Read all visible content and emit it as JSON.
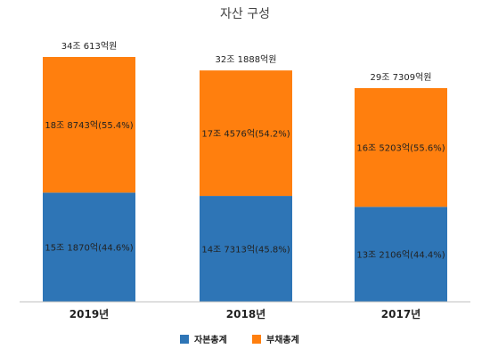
{
  "chart_data": {
    "type": "bar",
    "stacked": true,
    "title": "자산 구성",
    "categories": [
      "2019년",
      "2018년",
      "2017년"
    ],
    "totals": [
      "34조 613억원",
      "32조 1888억원",
      "29조 7309억원"
    ],
    "series": [
      {
        "name": "자본총계",
        "color": "#2E75B6",
        "values": [
          151870,
          147313,
          132106
        ],
        "labels": [
          "15조 1870억(44.6%)",
          "14조 7313억(45.8%)",
          "13조 2106억(44.4%)"
        ]
      },
      {
        "name": "부채총계",
        "color": "#FF7F0E",
        "values": [
          188743,
          174576,
          165203
        ],
        "labels": [
          "18조 8743억(55.4%)",
          "17조 4576억(54.2%)",
          "16조 5203억(55.6%)"
        ]
      }
    ],
    "ylim": [
      0,
      340613
    ],
    "grid": false,
    "legend": "bottom"
  }
}
